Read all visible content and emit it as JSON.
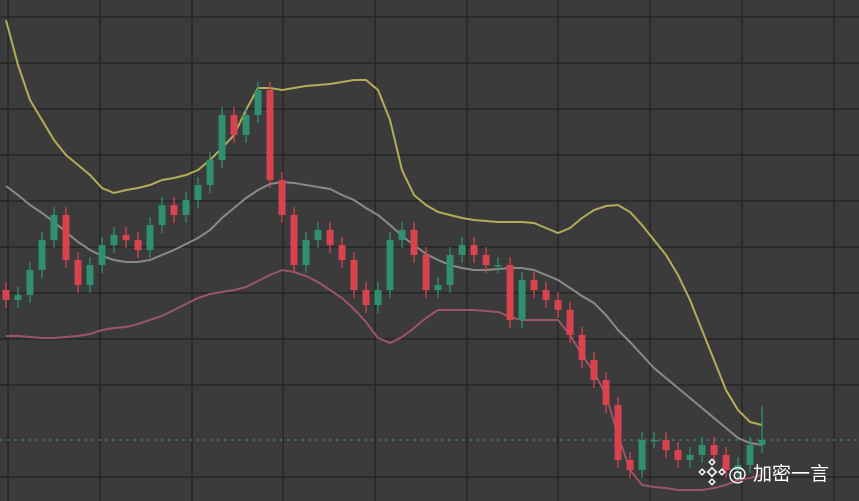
{
  "chart_data": {
    "type": "candlestick",
    "xlim": [
      -0.5,
      71.08
    ],
    "xticks": [
      0.17,
      7.83,
      15.5,
      23.08,
      30.75,
      38.42,
      46,
      53.67,
      61.33,
      69
    ],
    "ylim": [
      0,
      501
    ],
    "yticks": [
      484,
      438,
      392,
      346,
      300,
      254,
      208,
      162,
      116,
      24
    ],
    "grid": true,
    "up_color": "#2f8f6e",
    "down_color": "#d8434f",
    "hline": 61,
    "hline_color": "#3f8f86",
    "open": [
      211,
      201,
      206,
      231,
      261,
      286,
      241,
      216,
      236,
      256,
      266,
      261,
      251,
      276,
      296,
      286,
      301,
      316,
      341,
      386,
      366,
      386,
      411,
      321,
      286,
      236,
      261,
      271,
      256,
      241,
      211,
      196,
      211,
      261,
      271,
      246,
      211,
      216,
      246,
      256,
      246,
      236,
      236,
      181,
      221,
      211,
      201,
      191,
      166,
      141,
      121,
      96,
      41,
      31,
      61,
      61,
      51,
      41,
      46,
      56,
      46,
      31,
      36,
      56
    ],
    "high": [
      219,
      214,
      239,
      269,
      294,
      294,
      249,
      244,
      264,
      274,
      274,
      269,
      284,
      304,
      304,
      309,
      324,
      349,
      394,
      394,
      394,
      419,
      419,
      329,
      294,
      269,
      279,
      279,
      264,
      249,
      219,
      219,
      269,
      279,
      279,
      254,
      224,
      254,
      264,
      264,
      254,
      244,
      244,
      229,
      229,
      219,
      209,
      199,
      174,
      149,
      129,
      104,
      49,
      69,
      69,
      69,
      59,
      54,
      64,
      64,
      54,
      44,
      64,
      95
    ],
    "low": [
      193,
      193,
      198,
      223,
      253,
      233,
      208,
      208,
      228,
      248,
      253,
      243,
      243,
      268,
      278,
      278,
      293,
      308,
      333,
      358,
      358,
      378,
      313,
      278,
      228,
      228,
      253,
      248,
      233,
      203,
      188,
      188,
      203,
      253,
      238,
      203,
      203,
      208,
      238,
      238,
      228,
      228,
      173,
      173,
      203,
      193,
      183,
      158,
      133,
      113,
      88,
      33,
      23,
      23,
      53,
      43,
      33,
      33,
      38,
      38,
      23,
      23,
      28,
      48
    ],
    "close": [
      201,
      206,
      231,
      261,
      286,
      241,
      216,
      236,
      256,
      266,
      261,
      251,
      276,
      296,
      286,
      301,
      316,
      341,
      386,
      366,
      386,
      411,
      321,
      286,
      236,
      261,
      271,
      256,
      241,
      211,
      196,
      211,
      261,
      271,
      246,
      211,
      216,
      246,
      256,
      246,
      236,
      236,
      181,
      221,
      211,
      201,
      191,
      166,
      141,
      121,
      96,
      41,
      31,
      61,
      61,
      51,
      41,
      46,
      56,
      46,
      31,
      36,
      56,
      61
    ],
    "bands": [
      {
        "color": "#b3ad55",
        "values": [
          481,
          436,
          401,
          381,
          361,
          346,
          336,
          326,
          313,
          308,
          311,
          313,
          316,
          321,
          323,
          326,
          331,
          341,
          353,
          366,
          391,
          413,
          413,
          411,
          413,
          415,
          416,
          417,
          419,
          421,
          421,
          411,
          381,
          331,
          306,
          296,
          289,
          286,
          283,
          281,
          280,
          279,
          279,
          279,
          278,
          273,
          268,
          273,
          283,
          291,
          295,
          296,
          289,
          276,
          261,
          246,
          226,
          201,
          171,
          141,
          111,
          91,
          79,
          76
        ]
      },
      {
        "color": "#8a8a8a",
        "values": [
          315,
          306,
          296,
          288,
          279,
          269,
          259,
          251,
          245,
          241,
          239,
          239,
          241,
          246,
          251,
          257,
          263,
          271,
          283,
          293,
          303,
          311,
          317,
          319,
          318,
          316,
          314,
          312,
          306,
          301,
          293,
          286,
          276,
          265,
          256,
          247,
          241,
          236,
          233,
          231,
          231,
          232,
          233,
          233,
          231,
          226,
          221,
          213,
          205,
          198,
          186,
          171,
          159,
          146,
          133,
          123,
          113,
          103,
          93,
          83,
          73,
          63,
          58,
          56
        ]
      },
      {
        "color": "#9b5566",
        "values": [
          165,
          165,
          164,
          163,
          163,
          164,
          165,
          167,
          171,
          173,
          174,
          177,
          181,
          185,
          191,
          197,
          203,
          207,
          209,
          211,
          214,
          220,
          226,
          231,
          229,
          225,
          219,
          211,
          203,
          192,
          179,
          163,
          158,
          164,
          173,
          183,
          191,
          191,
          191,
          191,
          190,
          189,
          184,
          181,
          181,
          181,
          181,
          166,
          146,
          129,
          106,
          66,
          31,
          16,
          14,
          13,
          11,
          11,
          11,
          13,
          16,
          21,
          23,
          26
        ]
      }
    ],
    "watermark": "@ 加密一言"
  }
}
